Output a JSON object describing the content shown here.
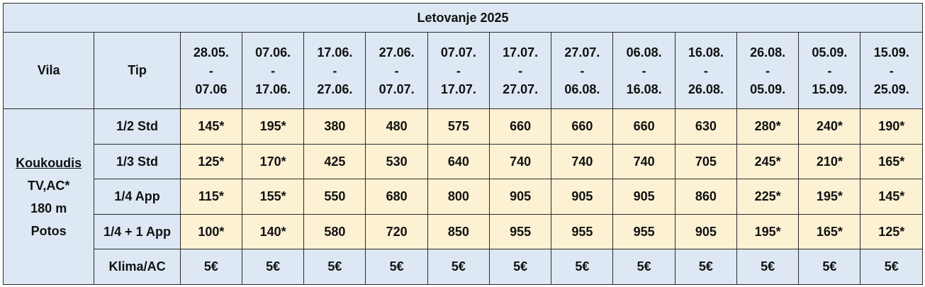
{
  "title": "Letovanje 2025",
  "headers": {
    "vila": "Vila",
    "tip": "Tip",
    "periods": [
      {
        "from": "28.05.",
        "sep": "-",
        "to": "07.06"
      },
      {
        "from": "07.06.",
        "sep": "-",
        "to": "17.06."
      },
      {
        "from": "17.06.",
        "sep": "-",
        "to": "27.06."
      },
      {
        "from": "27.06.",
        "sep": "-",
        "to": "07.07."
      },
      {
        "from": "07.07.",
        "sep": "-",
        "to": "17.07."
      },
      {
        "from": "17.07.",
        "sep": "-",
        "to": "27.07."
      },
      {
        "from": "27.07.",
        "sep": "-",
        "to": "06.08."
      },
      {
        "from": "06.08.",
        "sep": "-",
        "to": "16.08."
      },
      {
        "from": "16.08.",
        "sep": "-",
        "to": "26.08."
      },
      {
        "from": "26.08.",
        "sep": "-",
        "to": "05.09."
      },
      {
        "from": "05.09.",
        "sep": "-",
        "to": "15.09."
      },
      {
        "from": "15.09.",
        "sep": "-",
        "to": "25.09."
      }
    ]
  },
  "vila": {
    "name": "Koukoudis",
    "features": "TV,AC*",
    "distance": "180 m",
    "location": "Potos"
  },
  "rows": [
    {
      "tip": "1/2 Std",
      "prices": [
        "145*",
        "195*",
        "380",
        "480",
        "575",
        "660",
        "660",
        "660",
        "630",
        "280*",
        "240*",
        "190*"
      ]
    },
    {
      "tip": "1/3 Std",
      "prices": [
        "125*",
        "170*",
        "425",
        "530",
        "640",
        "740",
        "740",
        "740",
        "705",
        "245*",
        "210*",
        "165*"
      ]
    },
    {
      "tip": "1/4 App",
      "prices": [
        "115*",
        "155*",
        "550",
        "680",
        "800",
        "905",
        "905",
        "905",
        "860",
        "225*",
        "195*",
        "145*"
      ]
    },
    {
      "tip": "1/4 + 1 App",
      "prices": [
        "100*",
        "140*",
        "580",
        "720",
        "850",
        "955",
        "955",
        "955",
        "905",
        "195*",
        "165*",
        "125*"
      ]
    }
  ],
  "klima": {
    "label": "Klima/AC",
    "prices": [
      "5€",
      "5€",
      "5€",
      "5€",
      "5€",
      "5€",
      "5€",
      "5€",
      "5€",
      "5€",
      "5€",
      "5€"
    ]
  },
  "colors": {
    "header_bg": "#dde8f4",
    "price_bg": "#fdf1d3",
    "border": "#2b2b2b"
  }
}
